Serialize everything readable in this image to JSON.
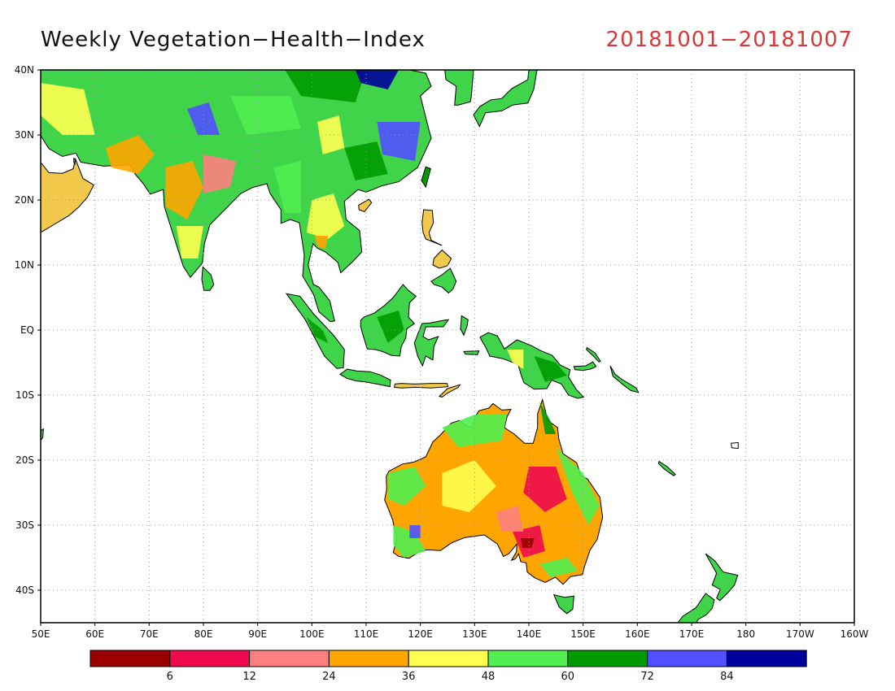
{
  "title": "Weekly Vegetation−Health−Index",
  "date_range": "20181001−20181007",
  "map": {
    "lon_range": [
      50,
      200
    ],
    "lat_range": [
      -45,
      40
    ],
    "lat_ticks": [
      {
        "value": 40,
        "label": "40N"
      },
      {
        "value": 30,
        "label": "30N"
      },
      {
        "value": 20,
        "label": "20N"
      },
      {
        "value": 10,
        "label": "10N"
      },
      {
        "value": 0,
        "label": "EQ"
      },
      {
        "value": -10,
        "label": "10S"
      },
      {
        "value": -20,
        "label": "20S"
      },
      {
        "value": -30,
        "label": "30S"
      },
      {
        "value": -40,
        "label": "40S"
      }
    ],
    "lon_ticks": [
      {
        "value": 50,
        "label": "50E"
      },
      {
        "value": 60,
        "label": "60E"
      },
      {
        "value": 70,
        "label": "70E"
      },
      {
        "value": 80,
        "label": "80E"
      },
      {
        "value": 90,
        "label": "90E"
      },
      {
        "value": 100,
        "label": "100E"
      },
      {
        "value": 110,
        "label": "110E"
      },
      {
        "value": 120,
        "label": "120E"
      },
      {
        "value": 130,
        "label": "130E"
      },
      {
        "value": 140,
        "label": "140E"
      },
      {
        "value": 150,
        "label": "150E"
      },
      {
        "value": 160,
        "label": "160E"
      },
      {
        "value": 170,
        "label": "170E"
      },
      {
        "value": 180,
        "label": "180"
      },
      {
        "value": 190,
        "label": "170W"
      },
      {
        "value": 200,
        "label": "160W"
      }
    ],
    "gridlines": true
  },
  "colorbar": {
    "colors": [
      "#9b0000",
      "#ee0a4c",
      "#ff7f7f",
      "#ffa500",
      "#ffff50",
      "#50ee50",
      "#009b00",
      "#5050ff",
      "#00009b"
    ],
    "labels": [
      "6",
      "12",
      "24",
      "36",
      "48",
      "60",
      "72",
      "84"
    ]
  }
}
